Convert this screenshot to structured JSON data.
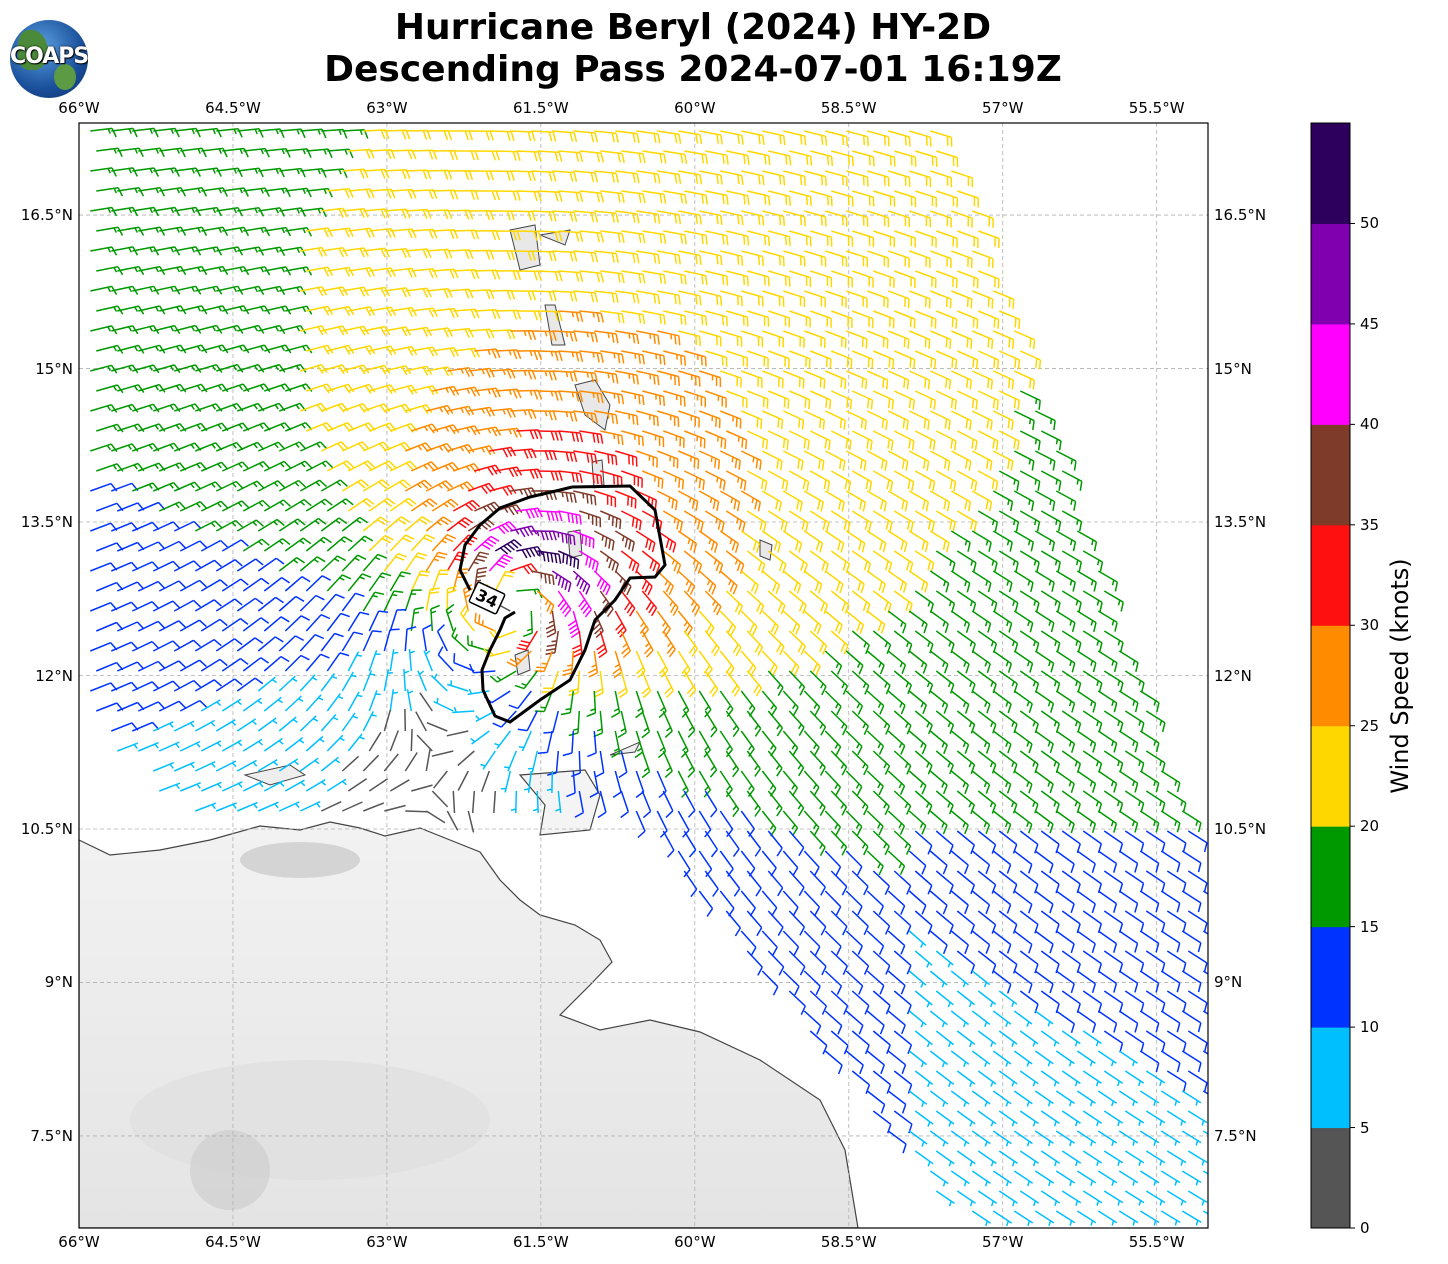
{
  "title": {
    "line1": "Hurricane Beryl (2024) HY-2D",
    "line2": "Descending Pass 2024-07-01 16:19Z"
  },
  "logo_text": "COAPS",
  "chart_data": {
    "type": "map-wind-barbs",
    "lon_range": [
      -66,
      -55
    ],
    "lat_range": [
      6.6,
      17.4
    ],
    "lon_ticks": [
      -66,
      -64.5,
      -63,
      -61.5,
      -60,
      -58.5,
      -57,
      -55.5
    ],
    "lon_labels": [
      "66°W",
      "64.5°W",
      "63°W",
      "61.5°W",
      "60°W",
      "58.5°W",
      "57°W",
      "55.5°W"
    ],
    "lat_ticks": [
      16.5,
      15,
      13.5,
      12,
      10.5,
      9,
      7.5
    ],
    "lat_labels": [
      "16.5°N",
      "15°N",
      "13.5°N",
      "12°N",
      "10.5°N",
      "9°N",
      "7.5°N"
    ],
    "storm_center": [
      -61.7,
      12.8
    ],
    "contour": {
      "label": "34",
      "value_knots": 34
    },
    "colorbar": {
      "label": "Wind Speed (knots)",
      "bounds": [
        0,
        5,
        10,
        15,
        20,
        25,
        30,
        35,
        40,
        45,
        50,
        55
      ],
      "tick_labels": [
        "0",
        "5",
        "10",
        "15",
        "20",
        "25",
        "30",
        "35",
        "40",
        "45",
        "50"
      ],
      "colors": [
        "#555555",
        "#00bfff",
        "#0033ff",
        "#009900",
        "#ffd700",
        "#ff8c00",
        "#ff1010",
        "#7f3b2a",
        "#ff00ff",
        "#8000b0",
        "#2e005e"
      ]
    }
  }
}
